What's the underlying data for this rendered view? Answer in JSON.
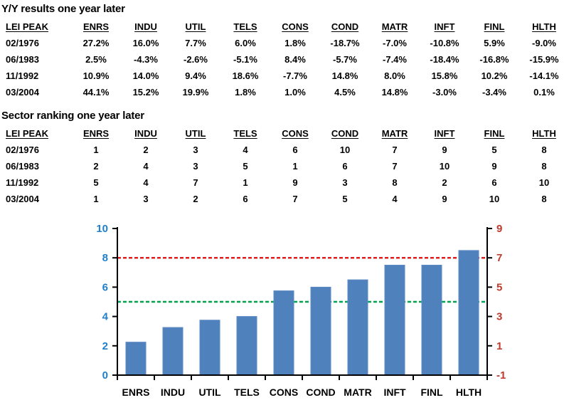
{
  "report": {
    "tables": [
      {
        "title": "Y/Y results one year later",
        "headers": [
          "LEI PEAK",
          "ENRS",
          "INDU",
          "UTIL",
          "TELS",
          "CONS",
          "COND",
          "MATR",
          "INFT",
          "FINL",
          "HLTH"
        ],
        "rows": [
          [
            "02/1976",
            "27.2%",
            "16.0%",
            "7.7%",
            "6.0%",
            "1.8%",
            "-18.7%",
            "-7.0%",
            "-10.8%",
            "5.9%",
            "-9.0%"
          ],
          [
            "06/1983",
            "2.5%",
            "-4.3%",
            "-2.6%",
            "-5.1%",
            "8.4%",
            "-5.7%",
            "-7.4%",
            "-18.4%",
            "-16.8%",
            "-15.9%"
          ],
          [
            "11/1992",
            "10.9%",
            "14.0%",
            "9.4%",
            "18.6%",
            "-7.7%",
            "14.8%",
            "8.0%",
            "15.8%",
            "10.2%",
            "-14.1%"
          ],
          [
            "03/2004",
            "44.1%",
            "15.2%",
            "19.9%",
            "1.8%",
            "1.0%",
            "4.5%",
            "14.8%",
            "-3.0%",
            "-3.4%",
            "0.1%"
          ]
        ]
      },
      {
        "title": "Sector ranking one year later",
        "headers": [
          "LEI PEAK",
          "ENRS",
          "INDU",
          "UTIL",
          "TELS",
          "CONS",
          "COND",
          "MATR",
          "INFT",
          "FINL",
          "HLTH"
        ],
        "rows": [
          [
            "02/1976",
            "1",
            "2",
            "3",
            "4",
            "6",
            "10",
            "7",
            "9",
            "5",
            "8"
          ],
          [
            "06/1983",
            "2",
            "4",
            "3",
            "5",
            "1",
            "6",
            "7",
            "10",
            "9",
            "8"
          ],
          [
            "11/1992",
            "5",
            "4",
            "7",
            "1",
            "9",
            "3",
            "8",
            "2",
            "6",
            "10"
          ],
          [
            "03/2004",
            "1",
            "3",
            "2",
            "6",
            "7",
            "5",
            "4",
            "9",
            "10",
            "8"
          ]
        ]
      }
    ]
  },
  "chart_data": {
    "type": "bar",
    "title": "",
    "xlabel": "",
    "ylabel": "",
    "categories": [
      "ENRS",
      "INDU",
      "UTIL",
      "TELS",
      "CONS",
      "COND",
      "MATR",
      "INFT",
      "FINL",
      "HLTH"
    ],
    "values": [
      2.25,
      3.25,
      3.75,
      4.0,
      5.75,
      6.0,
      6.5,
      7.5,
      7.5,
      8.5
    ],
    "left_axis": {
      "ticks": [
        0,
        2,
        4,
        6,
        8,
        10
      ],
      "range": [
        0,
        10
      ],
      "label_color": "#1F7FCC"
    },
    "right_axis": {
      "ticks": [
        -1,
        1,
        3,
        5,
        7,
        9
      ],
      "range": [
        -1,
        9
      ],
      "label_color": "#C0392B"
    },
    "reference_lines": [
      {
        "value": 8,
        "axis": "left",
        "color": "#E02020",
        "style": "dashed",
        "name": "red-threshold"
      },
      {
        "value": 5,
        "axis": "left",
        "color": "#00A550",
        "style": "dashed",
        "name": "green-threshold"
      }
    ],
    "bar_color": "#4F81BD",
    "bar_border_color": "#5E8AC4",
    "axis_line_color": "#000000",
    "grid": false,
    "legend": "none"
  }
}
